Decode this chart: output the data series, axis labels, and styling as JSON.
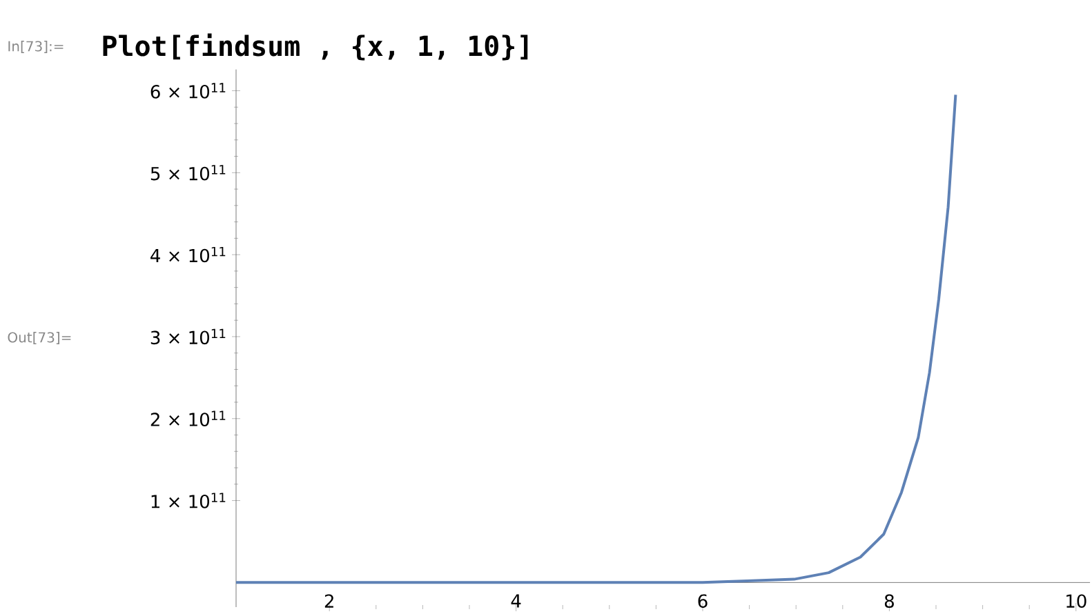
{
  "chart_data": {
    "type": "line",
    "title": "Plot[findsum , {x, 1, 10}]",
    "annotations": [
      "In[73]:=",
      "Out[73]="
    ],
    "x": [
      1,
      2,
      3,
      4,
      5,
      6,
      6.48,
      6.98,
      7.35,
      7.69,
      7.94,
      8.13,
      8.31,
      8.43,
      8.53,
      8.63,
      8.71
    ],
    "series": [
      {
        "color": "#5e81b5",
        "values": [
          0,
          0,
          0,
          0,
          0,
          0,
          2000000000.0,
          4000000000.0,
          12000000000.0,
          31000000000.0,
          59000000000.0,
          110000000000.0,
          177000000000.0,
          256000000000.0,
          346000000000.0,
          458000000000.0,
          595000000000.0
        ]
      }
    ],
    "xlim": [
      1,
      10.15
    ],
    "ylim": [
      -30000000000.0,
      626000000000.0
    ],
    "xticks": [
      2,
      4,
      6,
      8,
      10
    ],
    "yticks": [
      {
        "value": 100000000000.0,
        "label": "1 × 10$^{11}$"
      },
      {
        "value": 200000000000.0,
        "label": "2 × 10$^{11}$"
      },
      {
        "value": 300000000000.0,
        "label": "3 × 10$^{11}$"
      },
      {
        "value": 400000000000.0,
        "label": "4 × 10$^{11}$"
      },
      {
        "value": 500000000000.0,
        "label": "5 × 10$^{11}$"
      },
      {
        "value": 600000000000.0,
        "label": "6 × 10$^{11}$"
      }
    ],
    "marker": "none",
    "line_style": "solid"
  }
}
